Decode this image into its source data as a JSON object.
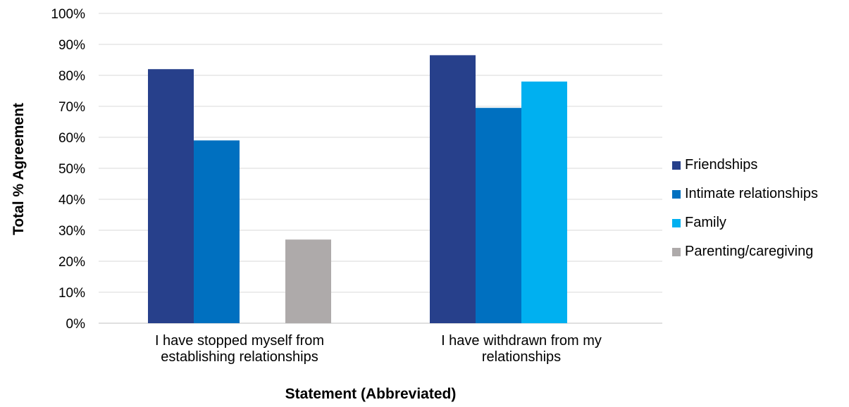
{
  "chart_data": {
    "type": "bar",
    "title": "",
    "xlabel": "Statement (Abbreviated)",
    "ylabel": "Total % Agreement",
    "ylim": [
      0,
      100
    ],
    "yticks": [
      "0%",
      "10%",
      "20%",
      "30%",
      "40%",
      "50%",
      "60%",
      "70%",
      "80%",
      "90%",
      "100%"
    ],
    "grid": true,
    "legend_position": "right",
    "categories": [
      [
        "I have stopped myself from",
        "establishing relationships"
      ],
      [
        "I have withdrawn from my",
        "relationships"
      ]
    ],
    "series": [
      {
        "name": "Friendships",
        "color": "#27408b",
        "values": [
          82,
          86.5
        ]
      },
      {
        "name": "Intimate relationships",
        "color": "#0070c0",
        "values": [
          59,
          69.5
        ]
      },
      {
        "name": "Family",
        "color": "#00b0f0",
        "values": [
          null,
          78
        ]
      },
      {
        "name": "Parenting/caregiving",
        "color": "#aeaaaa",
        "values": [
          27,
          null
        ]
      }
    ]
  }
}
